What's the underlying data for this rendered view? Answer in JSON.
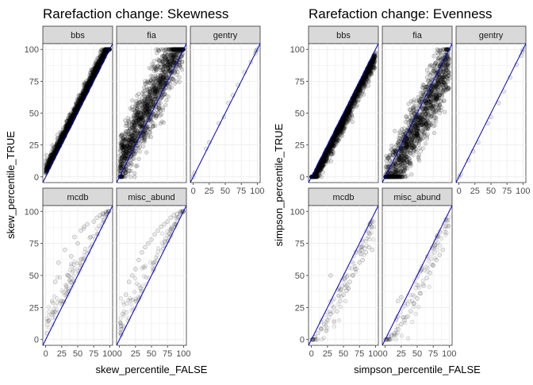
{
  "chart_data": [
    {
      "type": "scatter",
      "title": "Rarefaction change: Skewness",
      "xlabel": "skew_percentile_FALSE",
      "ylabel": "skew_percentile_TRUE",
      "xlim": [
        0,
        100
      ],
      "ylim": [
        0,
        100
      ],
      "x_ticks": [
        "0",
        "25",
        "50",
        "75",
        "100"
      ],
      "y_ticks": [
        "0",
        "25",
        "50",
        "75",
        "100"
      ],
      "grid": true,
      "reference_line": {
        "slope": 1,
        "intercept": 0,
        "color": "#0000cc"
      },
      "point_color": "#000000",
      "facets": [
        {
          "label": "bbs",
          "pattern": "tight_above",
          "density": "very-high",
          "points": [
            [
              2,
              4
            ],
            [
              8,
              12
            ],
            [
              15,
              19
            ],
            [
              22,
              27
            ],
            [
              30,
              34
            ],
            [
              38,
              42
            ],
            [
              45,
              50
            ],
            [
              52,
              57
            ],
            [
              60,
              64
            ],
            [
              68,
              72
            ],
            [
              75,
              79
            ],
            [
              82,
              86
            ],
            [
              90,
              93
            ],
            [
              96,
              98
            ]
          ]
        },
        {
          "label": "fia",
          "pattern": "wide_above",
          "density": "very-high",
          "points": [
            [
              5,
              30
            ],
            [
              10,
              40
            ],
            [
              20,
              55
            ],
            [
              30,
              65
            ],
            [
              40,
              75
            ],
            [
              50,
              85
            ],
            [
              60,
              92
            ],
            [
              3,
              10
            ],
            [
              8,
              5
            ],
            [
              15,
              5
            ],
            [
              25,
              20
            ],
            [
              40,
              35
            ],
            [
              70,
              65
            ],
            [
              85,
              82
            ]
          ]
        },
        {
          "label": "gentry",
          "pattern": "near_line",
          "density": "low",
          "points": [
            [
              0,
              0
            ],
            [
              2,
              3
            ],
            [
              20,
              22
            ],
            [
              25,
              27
            ],
            [
              40,
              42
            ],
            [
              48,
              47
            ],
            [
              55,
              58
            ],
            [
              62,
              64
            ],
            [
              70,
              72
            ],
            [
              80,
              82
            ],
            [
              90,
              90
            ],
            [
              100,
              100
            ],
            [
              98,
              99
            ],
            [
              97,
              97
            ]
          ]
        },
        {
          "label": "mcdb",
          "pattern": "above_scatter",
          "density": "medium",
          "points": [
            [
              2,
              5
            ],
            [
              5,
              15
            ],
            [
              10,
              30
            ],
            [
              15,
              45
            ],
            [
              20,
              60
            ],
            [
              25,
              30
            ],
            [
              30,
              70
            ],
            [
              35,
              50
            ],
            [
              40,
              65
            ],
            [
              45,
              80
            ],
            [
              50,
              75
            ],
            [
              55,
              85
            ],
            [
              60,
              88
            ],
            [
              65,
              90
            ],
            [
              70,
              80
            ],
            [
              75,
              92
            ],
            [
              80,
              95
            ],
            [
              85,
              97
            ],
            [
              90,
              98
            ],
            [
              95,
              99
            ],
            [
              98,
              100
            ]
          ]
        },
        {
          "label": "misc_abund",
          "pattern": "above_scatter",
          "density": "medium",
          "points": [
            [
              2,
              8
            ],
            [
              5,
              20
            ],
            [
              10,
              35
            ],
            [
              15,
              45
            ],
            [
              20,
              50
            ],
            [
              25,
              55
            ],
            [
              30,
              62
            ],
            [
              35,
              68
            ],
            [
              40,
              72
            ],
            [
              45,
              75
            ],
            [
              50,
              78
            ],
            [
              55,
              82
            ],
            [
              60,
              85
            ],
            [
              65,
              88
            ],
            [
              70,
              90
            ],
            [
              75,
              92
            ],
            [
              80,
              95
            ],
            [
              85,
              97
            ],
            [
              90,
              98
            ],
            [
              95,
              99
            ],
            [
              100,
              100
            ]
          ]
        }
      ]
    },
    {
      "type": "scatter",
      "title": "Rarefaction change: Evenness",
      "xlabel": "simpson_percentile_FALSE",
      "ylabel": "simpson_percentile_TRUE",
      "xlim": [
        0,
        100
      ],
      "ylim": [
        0,
        100
      ],
      "x_ticks": [
        "0",
        "25",
        "50",
        "75",
        "100"
      ],
      "y_ticks": [
        "0",
        "25",
        "50",
        "75",
        "100"
      ],
      "grid": true,
      "reference_line": {
        "slope": 1,
        "intercept": 0,
        "color": "#0000cc"
      },
      "point_color": "#000000",
      "facets": [
        {
          "label": "bbs",
          "pattern": "tight_below",
          "density": "very-high",
          "points": [
            [
              4,
              2
            ],
            [
              12,
              8
            ],
            [
              20,
              15
            ],
            [
              28,
              22
            ],
            [
              35,
              30
            ],
            [
              43,
              38
            ],
            [
              50,
              45
            ],
            [
              58,
              52
            ],
            [
              65,
              60
            ],
            [
              72,
              68
            ],
            [
              80,
              75
            ],
            [
              87,
              82
            ],
            [
              94,
              90
            ],
            [
              98,
              96
            ]
          ]
        },
        {
          "label": "fia",
          "pattern": "wide_below",
          "density": "very-high",
          "points": [
            [
              30,
              5
            ],
            [
              40,
              10
            ],
            [
              55,
              20
            ],
            [
              65,
              30
            ],
            [
              75,
              40
            ],
            [
              85,
              50
            ],
            [
              92,
              60
            ],
            [
              10,
              3
            ],
            [
              30,
              35
            ],
            [
              5,
              8
            ],
            [
              20,
              25
            ],
            [
              45,
              50
            ],
            [
              70,
              65
            ],
            [
              90,
              82
            ]
          ]
        },
        {
          "label": "gentry",
          "pattern": "near_line",
          "density": "low",
          "points": [
            [
              0,
              0
            ],
            [
              3,
              2
            ],
            [
              15,
              13
            ],
            [
              22,
              20
            ],
            [
              30,
              27
            ],
            [
              45,
              42
            ],
            [
              50,
              47
            ],
            [
              62,
              58
            ],
            [
              70,
              67
            ],
            [
              80,
              78
            ],
            [
              90,
              88
            ],
            [
              100,
              100
            ],
            [
              99,
              98
            ],
            [
              97,
              95
            ]
          ]
        },
        {
          "label": "mcdb",
          "pattern": "below_scatter",
          "density": "medium",
          "points": [
            [
              2,
              0
            ],
            [
              5,
              2
            ],
            [
              10,
              5
            ],
            [
              15,
              8
            ],
            [
              20,
              12
            ],
            [
              25,
              15
            ],
            [
              30,
              20
            ],
            [
              35,
              25
            ],
            [
              40,
              22
            ],
            [
              45,
              30
            ],
            [
              50,
              35
            ],
            [
              55,
              38
            ],
            [
              60,
              45
            ],
            [
              65,
              50
            ],
            [
              70,
              55
            ],
            [
              75,
              60
            ],
            [
              80,
              62
            ],
            [
              85,
              68
            ],
            [
              90,
              72
            ],
            [
              95,
              70
            ],
            [
              30,
              50
            ]
          ]
        },
        {
          "label": "misc_abund",
          "pattern": "below_scatter",
          "density": "medium",
          "points": [
            [
              2,
              0
            ],
            [
              5,
              2
            ],
            [
              10,
              3
            ],
            [
              15,
              5
            ],
            [
              20,
              8
            ],
            [
              25,
              12
            ],
            [
              30,
              15
            ],
            [
              35,
              18
            ],
            [
              40,
              22
            ],
            [
              45,
              28
            ],
            [
              50,
              32
            ],
            [
              55,
              36
            ],
            [
              60,
              42
            ],
            [
              65,
              48
            ],
            [
              70,
              52
            ],
            [
              75,
              58
            ],
            [
              80,
              62
            ],
            [
              85,
              66
            ],
            [
              90,
              70
            ],
            [
              20,
              30
            ],
            [
              25,
              33
            ]
          ]
        }
      ]
    }
  ]
}
